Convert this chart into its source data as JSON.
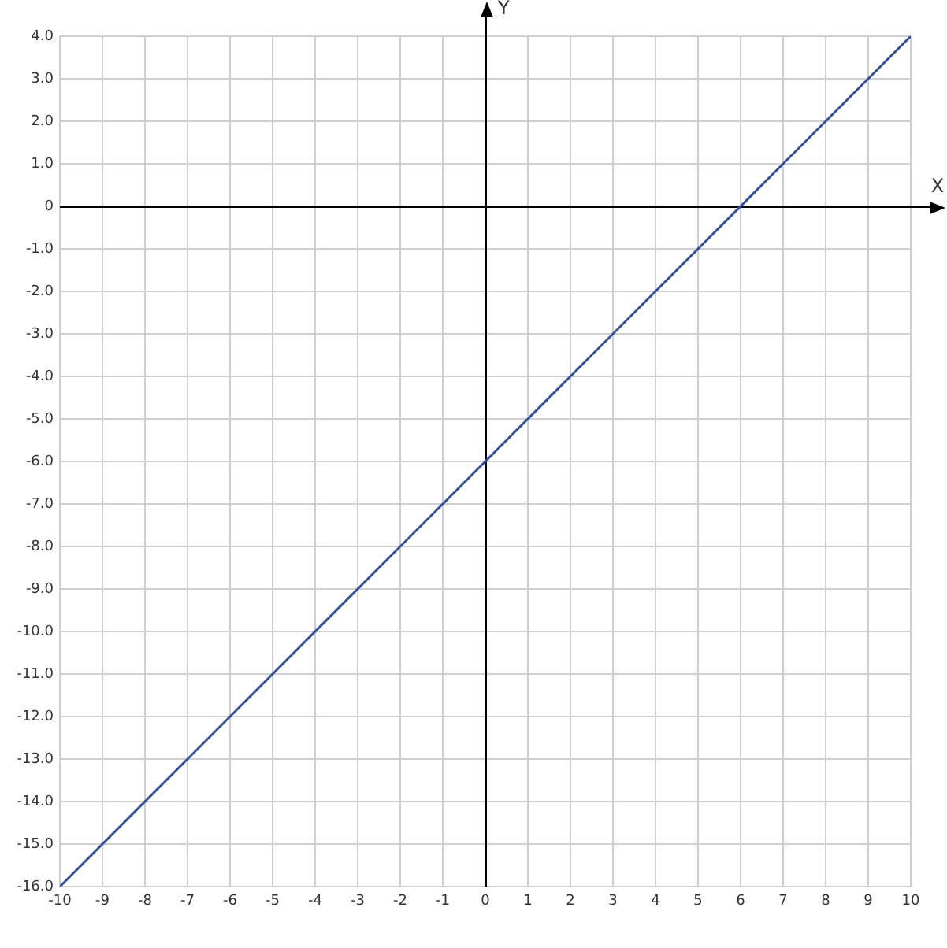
{
  "chart_data": {
    "type": "line",
    "xlabel": "X",
    "ylabel": "Y",
    "series": [
      {
        "color": "#2f4f9f",
        "x": [
          -10,
          10
        ],
        "values": [
          -16,
          4
        ]
      }
    ],
    "xlim": [
      -10,
      10
    ],
    "xticks": [
      -10,
      -9,
      -8,
      -7,
      -6,
      -5,
      -4,
      -3,
      -2,
      -1,
      0,
      1,
      2,
      3,
      4,
      5,
      6,
      7,
      8,
      9,
      10
    ],
    "ylim": [
      -16,
      4
    ],
    "yticks": [
      {
        "value": 4,
        "label": "4.0"
      },
      {
        "value": 3,
        "label": "3.0"
      },
      {
        "value": 2,
        "label": "2.0"
      },
      {
        "value": 1,
        "label": "1.0"
      },
      {
        "value": 0,
        "label": "0"
      },
      {
        "value": -1,
        "label": "-1.0"
      },
      {
        "value": -2,
        "label": "-2.0"
      },
      {
        "value": -3,
        "label": "-3.0"
      },
      {
        "value": -4,
        "label": "-4.0"
      },
      {
        "value": -5,
        "label": "-5.0"
      },
      {
        "value": -6,
        "label": "-6.0"
      },
      {
        "value": -7,
        "label": "-7.0"
      },
      {
        "value": -8,
        "label": "-8.0"
      },
      {
        "value": -9,
        "label": "-9.0"
      },
      {
        "value": -10,
        "label": "-10.0"
      },
      {
        "value": -11,
        "label": "-11.0"
      },
      {
        "value": -12,
        "label": "-12.0"
      },
      {
        "value": -13,
        "label": "-13.0"
      },
      {
        "value": -14,
        "label": "-14.0"
      },
      {
        "value": -15,
        "label": "-15.0"
      },
      {
        "value": -16,
        "label": "-16.0"
      }
    ],
    "grid": true,
    "marker": "none",
    "line_style": "solid",
    "legend": false
  }
}
